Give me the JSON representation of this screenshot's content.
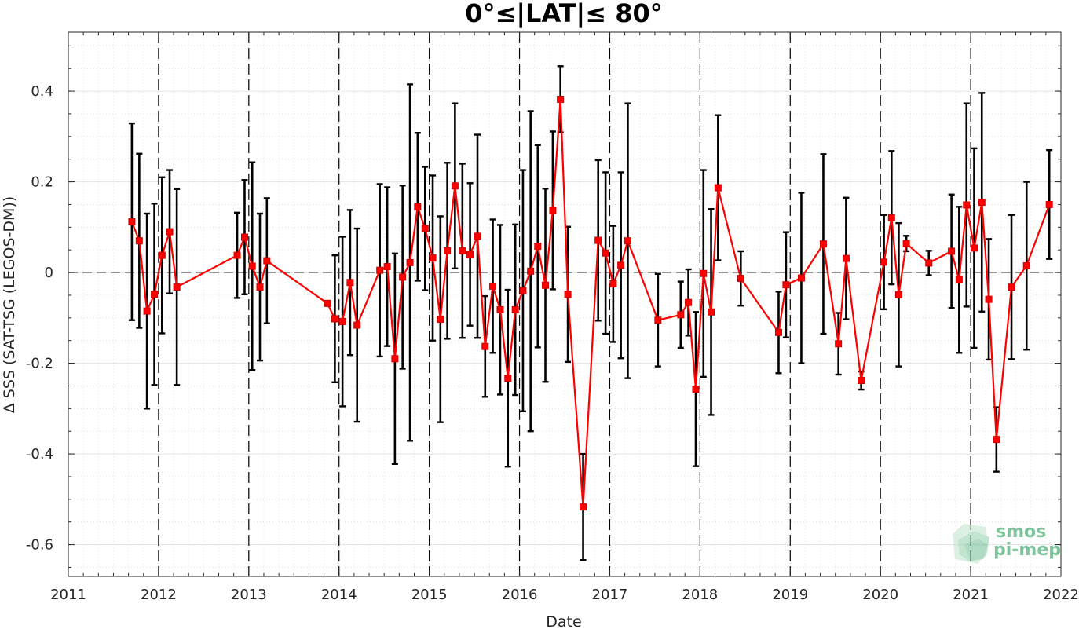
{
  "chart_data": {
    "type": "line",
    "title": "0°≤|LAT|≤ 80°",
    "xlabel": "Date",
    "ylabel": "Δ SSS (SAT-TSG (LEGOS-DM))",
    "xlim": [
      "2011-01-01",
      "2022-01-01"
    ],
    "ylim": [
      -0.67,
      0.53
    ],
    "x_ticks": [
      "2011",
      "2012",
      "2013",
      "2014",
      "2015",
      "2016",
      "2017",
      "2018",
      "2019",
      "2020",
      "2021",
      "2022"
    ],
    "y_ticks": [
      "0.4",
      "0.2",
      "0",
      "-0.2",
      "-0.4",
      "-0.6"
    ],
    "grid": true,
    "vertical_dashed_lines_at_years": true,
    "zero_dashed_line": true,
    "series": [
      {
        "color": "#ff0000",
        "marker": "square",
        "errorbar_color": "#000000",
        "points": [
          {
            "x": "2011-09-15",
            "y": 0.112,
            "err": 0.217
          },
          {
            "x": "2011-10-15",
            "y": 0.07,
            "err": 0.192
          },
          {
            "x": "2011-11-15",
            "y": -0.085,
            "err": 0.215
          },
          {
            "x": "2011-12-15",
            "y": -0.048,
            "err": 0.2
          },
          {
            "x": "2012-01-15",
            "y": 0.038,
            "err": 0.172
          },
          {
            "x": "2012-02-15",
            "y": 0.09,
            "err": 0.136
          },
          {
            "x": "2012-03-15",
            "y": -0.032,
            "err": 0.216
          },
          {
            "x": "2012-11-15",
            "y": 0.038,
            "err": 0.094
          },
          {
            "x": "2012-12-15",
            "y": 0.078,
            "err": 0.126
          },
          {
            "x": "2013-01-15",
            "y": 0.014,
            "err": 0.229
          },
          {
            "x": "2013-02-15",
            "y": -0.032,
            "err": 0.162
          },
          {
            "x": "2013-03-15",
            "y": 0.026,
            "err": 0.138
          },
          {
            "x": "2013-11-15",
            "y": -0.068,
            "err": 0.0
          },
          {
            "x": "2013-12-15",
            "y": -0.102,
            "err": 0.14
          },
          {
            "x": "2014-01-15",
            "y": -0.108,
            "err": 0.187
          },
          {
            "x": "2014-02-15",
            "y": -0.022,
            "err": 0.16
          },
          {
            "x": "2014-03-15",
            "y": -0.116,
            "err": 0.213
          },
          {
            "x": "2014-06-15",
            "y": 0.005,
            "err": 0.19
          },
          {
            "x": "2014-07-15",
            "y": 0.013,
            "err": 0.175
          },
          {
            "x": "2014-08-15",
            "y": -0.19,
            "err": 0.232
          },
          {
            "x": "2014-09-15",
            "y": -0.01,
            "err": 0.202
          },
          {
            "x": "2014-10-15",
            "y": 0.022,
            "err": 0.393
          },
          {
            "x": "2014-11-15",
            "y": 0.145,
            "err": 0.163
          },
          {
            "x": "2014-12-15",
            "y": 0.097,
            "err": 0.136
          },
          {
            "x": "2015-01-15",
            "y": 0.032,
            "err": 0.182
          },
          {
            "x": "2015-02-15",
            "y": -0.103,
            "err": 0.227
          },
          {
            "x": "2015-03-15",
            "y": 0.048,
            "err": 0.194
          },
          {
            "x": "2015-04-15",
            "y": 0.191,
            "err": 0.182
          },
          {
            "x": "2015-05-15",
            "y": 0.048,
            "err": 0.192
          },
          {
            "x": "2015-06-15",
            "y": 0.04,
            "err": 0.157
          },
          {
            "x": "2015-07-15",
            "y": 0.08,
            "err": 0.224
          },
          {
            "x": "2015-08-15",
            "y": -0.163,
            "err": 0.111
          },
          {
            "x": "2015-09-15",
            "y": -0.03,
            "err": 0.147
          },
          {
            "x": "2015-10-15",
            "y": -0.082,
            "err": 0.187
          },
          {
            "x": "2015-11-15",
            "y": -0.233,
            "err": 0.195
          },
          {
            "x": "2015-12-15",
            "y": -0.082,
            "err": 0.188
          },
          {
            "x": "2016-01-15",
            "y": -0.04,
            "err": 0.266
          },
          {
            "x": "2016-02-15",
            "y": 0.003,
            "err": 0.353
          },
          {
            "x": "2016-03-15",
            "y": 0.058,
            "err": 0.223
          },
          {
            "x": "2016-04-15",
            "y": -0.028,
            "err": 0.213
          },
          {
            "x": "2016-05-15",
            "y": 0.137,
            "err": 0.174
          },
          {
            "x": "2016-06-15",
            "y": 0.382,
            "err": 0.073
          },
          {
            "x": "2016-07-15",
            "y": -0.048,
            "err": 0.149
          },
          {
            "x": "2016-09-15",
            "y": -0.517,
            "err": 0.117
          },
          {
            "x": "2016-11-15",
            "y": 0.071,
            "err": 0.177
          },
          {
            "x": "2016-12-15",
            "y": 0.043,
            "err": 0.178
          },
          {
            "x": "2017-01-15",
            "y": -0.025,
            "err": 0.128
          },
          {
            "x": "2017-02-15",
            "y": 0.016,
            "err": 0.205
          },
          {
            "x": "2017-03-15",
            "y": 0.07,
            "err": 0.303
          },
          {
            "x": "2017-07-15",
            "y": -0.105,
            "err": 0.102
          },
          {
            "x": "2017-10-15",
            "y": -0.093,
            "err": 0.073
          },
          {
            "x": "2017-11-15",
            "y": -0.066,
            "err": 0.073
          },
          {
            "x": "2017-12-15",
            "y": -0.257,
            "err": 0.17
          },
          {
            "x": "2018-01-15",
            "y": -0.002,
            "err": 0.228
          },
          {
            "x": "2018-02-15",
            "y": -0.087,
            "err": 0.227
          },
          {
            "x": "2018-03-15",
            "y": 0.187,
            "err": 0.16
          },
          {
            "x": "2018-06-15",
            "y": -0.013,
            "err": 0.06
          },
          {
            "x": "2018-11-15",
            "y": -0.132,
            "err": 0.09
          },
          {
            "x": "2018-12-15",
            "y": -0.027,
            "err": 0.116
          },
          {
            "x": "2019-02-15",
            "y": -0.012,
            "err": 0.188
          },
          {
            "x": "2019-05-15",
            "y": 0.063,
            "err": 0.198
          },
          {
            "x": "2019-07-15",
            "y": -0.157,
            "err": 0.068
          },
          {
            "x": "2019-08-15",
            "y": 0.031,
            "err": 0.134
          },
          {
            "x": "2019-10-15",
            "y": -0.238,
            "err": 0.02
          },
          {
            "x": "2020-01-15",
            "y": 0.023,
            "err": 0.104
          },
          {
            "x": "2020-02-15",
            "y": 0.121,
            "err": 0.147
          },
          {
            "x": "2020-03-15",
            "y": -0.049,
            "err": 0.158
          },
          {
            "x": "2020-04-15",
            "y": 0.064,
            "err": 0.017
          },
          {
            "x": "2020-07-15",
            "y": 0.021,
            "err": 0.027
          },
          {
            "x": "2020-10-15",
            "y": 0.047,
            "err": 0.125
          },
          {
            "x": "2020-11-15",
            "y": -0.016,
            "err": 0.161
          },
          {
            "x": "2020-12-15",
            "y": 0.149,
            "err": 0.224
          },
          {
            "x": "2021-01-15",
            "y": 0.054,
            "err": 0.22
          },
          {
            "x": "2021-02-15",
            "y": 0.155,
            "err": 0.241
          },
          {
            "x": "2021-03-15",
            "y": -0.059,
            "err": 0.133
          },
          {
            "x": "2021-04-15",
            "y": -0.368,
            "err": 0.071
          },
          {
            "x": "2021-06-15",
            "y": -0.032,
            "err": 0.159
          },
          {
            "x": "2021-08-15",
            "y": 0.015,
            "err": 0.185
          },
          {
            "x": "2021-11-15",
            "y": 0.15,
            "err": 0.12
          }
        ]
      }
    ]
  },
  "logo": {
    "line1": "smos",
    "line2": "pi-mep",
    "color": "#7cc49a"
  }
}
